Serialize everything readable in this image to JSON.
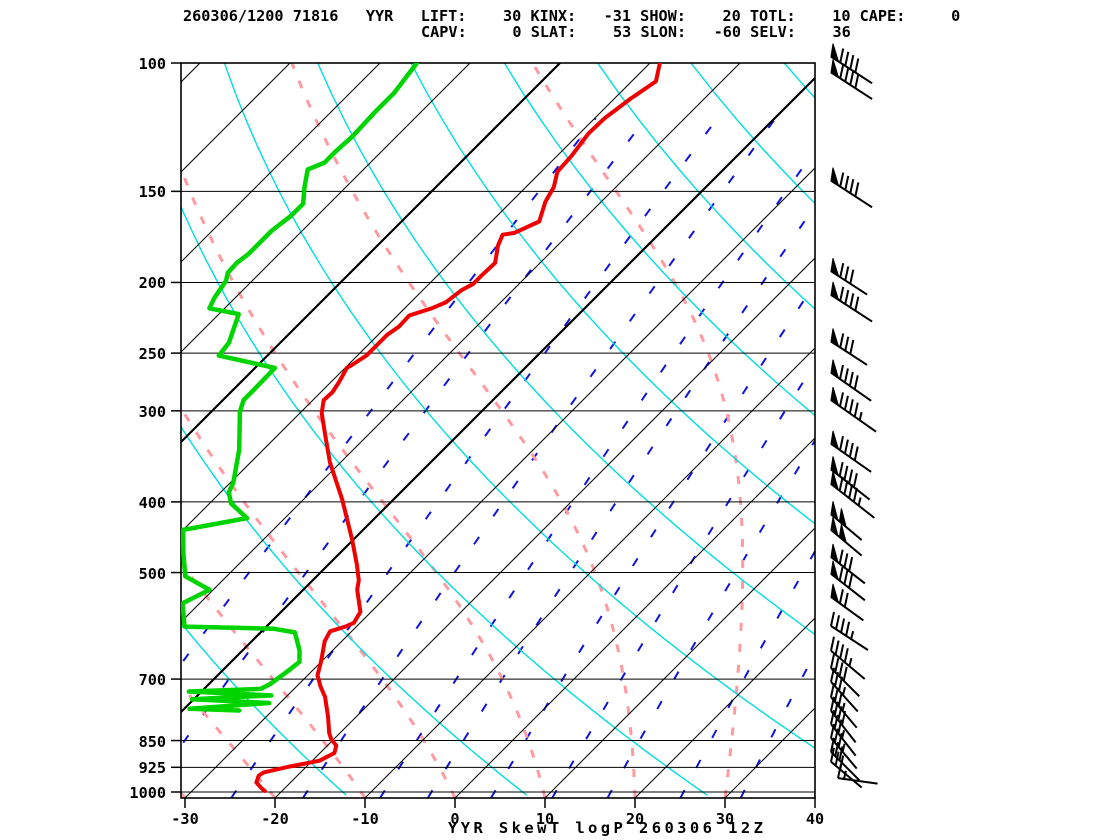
{
  "header": {
    "line1": "260306/1200 71816   YYR   LIFT:    30 KINX:   -31 SHOW:    20 TOTL:    10 CAPE:     0",
    "line2": "CAPV:     0 SLAT:    53 SLON:   -60 SELV:    36",
    "datetime": "260306/1200",
    "station_number": "71816",
    "station_id": "YYR",
    "indices": {
      "LIFT": 30,
      "KINX": -31,
      "SHOW": 20,
      "TOTL": 10,
      "CAPE": 0,
      "CAPV": 0,
      "SLAT": 53,
      "SLON": -60,
      "SELV": 36
    }
  },
  "title": "YYR SkewT logP 260306 12Z",
  "colors": {
    "temperature": "#ee0000",
    "dewpoint": "#00d400",
    "dry_adiabat": "#00dddd",
    "moist_adiabat": "#ff9aa2",
    "mixing_ratio": "#1212dd",
    "isotherm": "#000000",
    "frame": "#000000"
  },
  "chart_data": {
    "type": "line",
    "variant": "skewt-logp",
    "title": "YYR SkewT logP 260306 12Z",
    "pressure_ticks_hpa": [
      100,
      150,
      200,
      250,
      300,
      400,
      500,
      700,
      850,
      925,
      1000
    ],
    "temp_ticks_c": [
      -30,
      -20,
      -10,
      0,
      10,
      20,
      30,
      40
    ],
    "pressure_range_hpa": [
      100,
      1019
    ],
    "temp_range_c": [
      -30,
      40
    ],
    "background": {
      "isotherms_c": {
        "from": -120,
        "to": 40,
        "step": 10,
        "bold": [
          -70,
          -40
        ]
      },
      "dry_adiabats_k": {
        "from": 220,
        "to": 460,
        "step": 20
      },
      "moist_adiabats_c": {
        "from": -40,
        "to": 40,
        "step": 10
      },
      "mixing_ratio_gkg": [
        0.1,
        0.2,
        0.5,
        1,
        2,
        3,
        5,
        8,
        12,
        20,
        30
      ]
    },
    "series": [
      {
        "name": "temperature",
        "color": "#ee0000",
        "width": 4,
        "points": [
          [
            100,
            -58.9
          ],
          [
            106,
            -57.3
          ],
          [
            112,
            -58.2
          ],
          [
            119,
            -58.9
          ],
          [
            125,
            -59.0
          ],
          [
            134,
            -58.4
          ],
          [
            141,
            -58.2
          ],
          [
            148,
            -56.9
          ],
          [
            155,
            -56.2
          ],
          [
            165,
            -54.7
          ],
          [
            171,
            -56.2
          ],
          [
            172,
            -57.3
          ],
          [
            178,
            -56.6
          ],
          [
            188,
            -55.0
          ],
          [
            196,
            -55.1
          ],
          [
            201,
            -55.1
          ],
          [
            205,
            -55.7
          ],
          [
            213,
            -56.1
          ],
          [
            217,
            -57.0
          ],
          [
            222,
            -58.7
          ],
          [
            230,
            -58.6
          ],
          [
            236,
            -59.0
          ],
          [
            241,
            -59.0
          ],
          [
            252,
            -59.0
          ],
          [
            260,
            -59.6
          ],
          [
            262,
            -59.8
          ],
          [
            274,
            -59.1
          ],
          [
            283,
            -58.7
          ],
          [
            290,
            -58.8
          ],
          [
            302,
            -57.6
          ],
          [
            325,
            -54.6
          ],
          [
            353,
            -51.2
          ],
          [
            397,
            -45.7
          ],
          [
            451,
            -40.1
          ],
          [
            488,
            -36.8
          ],
          [
            512,
            -34.9
          ],
          [
            528,
            -34.0
          ],
          [
            566,
            -31.2
          ],
          [
            586,
            -30.7
          ],
          [
            593,
            -31.2
          ],
          [
            602,
            -32.4
          ],
          [
            621,
            -31.9
          ],
          [
            661,
            -30.1
          ],
          [
            692,
            -28.9
          ],
          [
            717,
            -27.3
          ],
          [
            740,
            -25.7
          ],
          [
            787,
            -23.2
          ],
          [
            830,
            -21.2
          ],
          [
            846,
            -20.3
          ],
          [
            864,
            -19.0
          ],
          [
            884,
            -18.4
          ],
          [
            906,
            -19.2
          ],
          [
            923,
            -21.9
          ],
          [
            940,
            -24.1
          ],
          [
            949,
            -24.3
          ],
          [
            970,
            -23.8
          ],
          [
            988,
            -22.6
          ],
          [
            997,
            -21.9
          ]
        ]
      },
      {
        "name": "dewpoint",
        "color": "#00d400",
        "width": 4.5,
        "points": [
          [
            100,
            -85.9
          ],
          [
            110,
            -85.1
          ],
          [
            117,
            -85.1
          ],
          [
            126,
            -84.9
          ],
          [
            132,
            -85.1
          ],
          [
            137,
            -85.1
          ],
          [
            140,
            -86.2
          ],
          [
            148,
            -84.6
          ],
          [
            156,
            -82.9
          ],
          [
            162,
            -82.9
          ],
          [
            170,
            -83.4
          ],
          [
            173,
            -83.4
          ],
          [
            183,
            -83.4
          ],
          [
            188,
            -83.7
          ],
          [
            194,
            -83.6
          ],
          [
            199,
            -82.9
          ],
          [
            210,
            -82.3
          ],
          [
            217,
            -81.7
          ],
          [
            221,
            -77.8
          ],
          [
            242,
            -75.7
          ],
          [
            252,
            -75.4
          ],
          [
            262,
            -67.8
          ],
          [
            282,
            -67.7
          ],
          [
            290,
            -67.7
          ],
          [
            301,
            -66.8
          ],
          [
            339,
            -62.7
          ],
          [
            376,
            -59.7
          ],
          [
            388,
            -59.1
          ],
          [
            402,
            -57.6
          ],
          [
            421,
            -54.2
          ],
          [
            437,
            -60.0
          ],
          [
            470,
            -57.4
          ],
          [
            506,
            -54.6
          ],
          [
            528,
            -50.4
          ],
          [
            551,
            -51.9
          ],
          [
            593,
            -49.1
          ],
          [
            597,
            -39.0
          ],
          [
            604,
            -36.2
          ],
          [
            639,
            -33.7
          ],
          [
            663,
            -32.4
          ],
          [
            684,
            -32.7
          ],
          [
            711,
            -33.2
          ],
          [
            722,
            -33.7
          ],
          [
            728,
            -41.4
          ],
          [
            737,
            -31.8
          ],
          [
            746,
            -40.2
          ],
          [
            755,
            -31.2
          ],
          [
            769,
            -39.4
          ],
          [
            773,
            -33.7
          ]
        ]
      }
    ],
    "wind_barbs": [
      {
        "p": 98,
        "kt": 90,
        "angle": 33
      },
      {
        "p": 103,
        "kt": 90,
        "angle": 33
      },
      {
        "p": 145,
        "kt": 90,
        "angle": 33
      },
      {
        "p": 193,
        "kt": 80,
        "angle": 33
      },
      {
        "p": 208,
        "kt": 90,
        "angle": 33
      },
      {
        "p": 241,
        "kt": 80,
        "angle": 33
      },
      {
        "p": 266,
        "kt": 90,
        "angle": 35
      },
      {
        "p": 290,
        "kt": 95,
        "angle": 35
      },
      {
        "p": 333,
        "kt": 90,
        "angle": 35
      },
      {
        "p": 361,
        "kt": 90,
        "angle": 38
      },
      {
        "p": 378,
        "kt": 95,
        "angle": 38
      },
      {
        "p": 416,
        "kt": 100,
        "angle": 40
      },
      {
        "p": 437,
        "kt": 100,
        "angle": 40
      },
      {
        "p": 476,
        "kt": 80,
        "angle": 38
      },
      {
        "p": 502,
        "kt": 80,
        "angle": 38
      },
      {
        "p": 540,
        "kt": 70,
        "angle": 36
      },
      {
        "p": 592,
        "kt": 45,
        "angle": 33
      },
      {
        "p": 640,
        "kt": 45,
        "angle": 40
      },
      {
        "p": 676,
        "kt": 40,
        "angle": 45
      },
      {
        "p": 706,
        "kt": 35,
        "angle": 48
      },
      {
        "p": 741,
        "kt": 35,
        "angle": 50
      },
      {
        "p": 774,
        "kt": 40,
        "angle": 52
      },
      {
        "p": 807,
        "kt": 35,
        "angle": 52
      },
      {
        "p": 843,
        "kt": 35,
        "angle": 50
      },
      {
        "p": 881,
        "kt": 30,
        "angle": 45
      },
      {
        "p": 909,
        "kt": 30,
        "angle": 40
      },
      {
        "p": 957,
        "kt": 15,
        "angle": 8
      }
    ]
  }
}
